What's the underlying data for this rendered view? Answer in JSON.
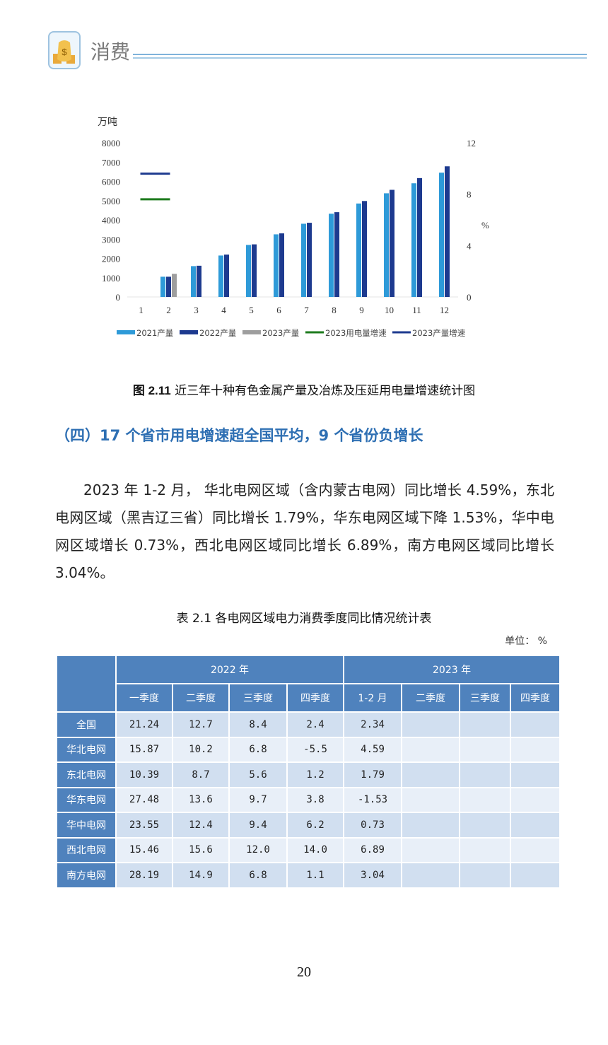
{
  "header": {
    "title": "消费",
    "icon": "money-bag-icon"
  },
  "chart_data": {
    "type": "bar",
    "y_unit_left": "万吨",
    "y_unit_right": "%",
    "categories": [
      "1",
      "2",
      "3",
      "4",
      "5",
      "6",
      "7",
      "8",
      "9",
      "10",
      "11",
      "12"
    ],
    "y_ticks_left": [
      "8000",
      "7000",
      "6000",
      "5000",
      "4000",
      "3000",
      "2000",
      "1000",
      "0"
    ],
    "y_ticks_right": [
      "12",
      "8",
      "4",
      "0"
    ],
    "ylim_left": [
      0,
      8000
    ],
    "ylim_right": [
      0,
      12
    ],
    "series": [
      {
        "name": "2021产量",
        "type": "bar",
        "color": "#2e9ad8",
        "values": [
          null,
          1050,
          1600,
          2150,
          2700,
          3250,
          3800,
          4320,
          4850,
          5380,
          5900,
          6450
        ]
      },
      {
        "name": "2022产量",
        "type": "bar",
        "color": "#1d3a8f",
        "values": [
          null,
          1050,
          1620,
          2200,
          2730,
          3300,
          3850,
          4400,
          4980,
          5560,
          6170,
          6780
        ]
      },
      {
        "name": "2023产量",
        "type": "bar",
        "color": "#9e9e9e",
        "values": [
          null,
          1200,
          null,
          null,
          null,
          null,
          null,
          null,
          null,
          null,
          null,
          null
        ]
      },
      {
        "name": "2023用电量增速",
        "type": "line",
        "color": "#1e7b1e",
        "axis": "right",
        "values": [
          null,
          7.6,
          null,
          null,
          null,
          null,
          null,
          null,
          null,
          null,
          null,
          null
        ]
      },
      {
        "name": "2023产量增速",
        "type": "line",
        "color": "#1d3a8f",
        "axis": "right",
        "values": [
          null,
          9.6,
          null,
          null,
          null,
          null,
          null,
          null,
          null,
          null,
          null,
          null
        ]
      }
    ],
    "legend_position": "bottom",
    "grid": false
  },
  "figure": {
    "caption_prefix": "图 2.11",
    "caption_text": "近三年十种有色金属产量及冶炼及压延用电量增速统计图"
  },
  "section": {
    "heading": "（四）17 个省市用电增速超全国平均，9 个省份负增长"
  },
  "paragraph": "2023 年 1-2 月， 华北电网区域（含内蒙古电网）同比增长 4.59%，东北电网区域（黑吉辽三省）同比增长 1.79%，华东电网区域下降 1.53%，华中电网区域增长 0.73%，西北电网区域同比增长 6.89%，南方电网区域同比增长 3.04%。",
  "table": {
    "title": "表 2.1 各电网区域电力消费季度同比情况统计表",
    "unit": "单位： %",
    "year_headers": [
      "2022 年",
      "2023 年"
    ],
    "sub_headers": [
      "一季度",
      "二季度",
      "三季度",
      "四季度",
      "1-2 月",
      "二季度",
      "三季度",
      "四季度"
    ],
    "rows": [
      {
        "region": "全国",
        "values": [
          "21.24",
          "12.7",
          "8.4",
          "2.4",
          "2.34",
          "",
          "",
          ""
        ]
      },
      {
        "region": "华北电网",
        "values": [
          "15.87",
          "10.2",
          "6.8",
          "-5.5",
          "4.59",
          "",
          "",
          ""
        ]
      },
      {
        "region": "东北电网",
        "values": [
          "10.39",
          "8.7",
          "5.6",
          "1.2",
          "1.79",
          "",
          "",
          ""
        ]
      },
      {
        "region": "华东电网",
        "values": [
          "27.48",
          "13.6",
          "9.7",
          "3.8",
          "-1.53",
          "",
          "",
          ""
        ]
      },
      {
        "region": "华中电网",
        "values": [
          "23.55",
          "12.4",
          "9.4",
          "6.2",
          "0.73",
          "",
          "",
          ""
        ]
      },
      {
        "region": "西北电网",
        "values": [
          "15.46",
          "15.6",
          "12.0",
          "14.0",
          "6.89",
          "",
          "",
          ""
        ]
      },
      {
        "region": "南方电网",
        "values": [
          "28.19",
          "14.9",
          "6.8",
          "1.1",
          "3.04",
          "",
          "",
          ""
        ]
      }
    ]
  },
  "page_number": "20"
}
